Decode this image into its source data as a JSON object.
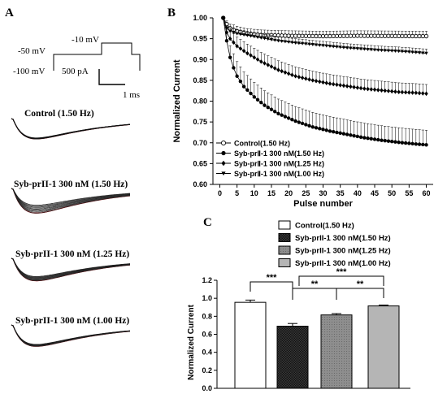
{
  "panels": {
    "a": {
      "letter": "A",
      "protocol": {
        "hold_label": "-100 mV",
        "pre_label": "-50 mV",
        "step_label": "-10 mV",
        "scale_current": "500 pA",
        "scale_time": "1 ms"
      },
      "traces": [
        {
          "label": "Control (1.50 Hz)",
          "spread": 0.05
        },
        {
          "label": "Syb-prII-1 300 nM (1.50 Hz)",
          "spread": 0.32
        },
        {
          "label": "Syb-prII-1 300 nM (1.25 Hz)",
          "spread": 0.19
        },
        {
          "label": "Syb-prII-1 300 nM (1.00 Hz)",
          "spread": 0.09
        }
      ]
    },
    "b": {
      "letter": "B"
    },
    "c": {
      "letter": "C"
    }
  },
  "colors": {
    "trace_body": "#111111",
    "trace_first": "#e0242b",
    "bar_edge": "#000000"
  },
  "chart_data": [
    {
      "type": "line",
      "panel": "B",
      "xlabel": "Pulse number",
      "ylabel": "Normalized Current",
      "xlim": [
        -2,
        62
      ],
      "ylim": [
        0.6,
        1.0
      ],
      "x_ticks": [
        "0",
        "5",
        "10",
        "15",
        "20",
        "25",
        "30",
        "35",
        "40",
        "45",
        "50",
        "55",
        "60"
      ],
      "y_ticks": [
        "0.60",
        "0.65",
        "0.70",
        "0.75",
        "0.80",
        "0.85",
        "0.90",
        "0.95",
        "1.00"
      ],
      "legend_position": "bottom-left",
      "error_bars": "upper",
      "grid": false,
      "series": [
        {
          "name": "Control(1.50 Hz)",
          "marker": "open-circle",
          "error": 0.012,
          "anchors": [
            [
              1,
              1.0
            ],
            [
              2,
              0.985
            ],
            [
              3,
              0.975
            ],
            [
              5,
              0.968
            ],
            [
              8,
              0.962
            ],
            [
              12,
              0.959
            ],
            [
              20,
              0.957
            ],
            [
              30,
              0.956
            ],
            [
              40,
              0.957
            ],
            [
              60,
              0.956
            ]
          ]
        },
        {
          "name": "Syb-prⅡ-1  300 nM(1.50 Hz)",
          "marker": "filled-circle",
          "error": 0.035,
          "anchors": [
            [
              1,
              1.0
            ],
            [
              2,
              0.945
            ],
            [
              3,
              0.905
            ],
            [
              4,
              0.88
            ],
            [
              5,
              0.86
            ],
            [
              7,
              0.835
            ],
            [
              10,
              0.81
            ],
            [
              13,
              0.79
            ],
            [
              17,
              0.77
            ],
            [
              22,
              0.752
            ],
            [
              27,
              0.738
            ],
            [
              32,
              0.728
            ],
            [
              37,
              0.72
            ],
            [
              42,
              0.712
            ],
            [
              47,
              0.706
            ],
            [
              52,
              0.701
            ],
            [
              57,
              0.697
            ],
            [
              60,
              0.695
            ]
          ]
        },
        {
          "name": "Syb-prⅡ-1  300 nM(1.25 Hz)",
          "marker": "filled-diamond",
          "error": 0.022,
          "anchors": [
            [
              1,
              1.0
            ],
            [
              2,
              0.965
            ],
            [
              3,
              0.95
            ],
            [
              5,
              0.932
            ],
            [
              8,
              0.915
            ],
            [
              12,
              0.895
            ],
            [
              17,
              0.875
            ],
            [
              22,
              0.86
            ],
            [
              27,
              0.85
            ],
            [
              32,
              0.842
            ],
            [
              37,
              0.836
            ],
            [
              42,
              0.83
            ],
            [
              47,
              0.826
            ],
            [
              52,
              0.822
            ],
            [
              57,
              0.82
            ],
            [
              60,
              0.818
            ]
          ]
        },
        {
          "name": "Syb-prⅡ-1  300 nM(1.00 Hz)",
          "marker": "filled-triangle-down",
          "error": 0.01,
          "anchors": [
            [
              1,
              1.0
            ],
            [
              2,
              0.975
            ],
            [
              3,
              0.968
            ],
            [
              5,
              0.962
            ],
            [
              8,
              0.958
            ],
            [
              12,
              0.952
            ],
            [
              17,
              0.945
            ],
            [
              22,
              0.94
            ],
            [
              27,
              0.936
            ],
            [
              32,
              0.932
            ],
            [
              37,
              0.928
            ],
            [
              42,
              0.925
            ],
            [
              47,
              0.922
            ],
            [
              52,
              0.92
            ],
            [
              57,
              0.917
            ],
            [
              60,
              0.915
            ]
          ]
        }
      ]
    },
    {
      "type": "bar",
      "panel": "C",
      "ylabel": "Normalized Current",
      "ylim": [
        0.0,
        1.2
      ],
      "y_ticks": [
        "0.0",
        "0.2",
        "0.4",
        "0.6",
        "0.8",
        "1.0",
        "1.2"
      ],
      "legend_position": "top",
      "grid": false,
      "categories": [
        "Control(1.50 Hz)",
        "Syb-prII-1 300 nM(1.50 Hz)",
        "Syb-prII-1 300 nM(1.25 Hz)",
        "Syb-prII-1 300 nM(1.00 Hz)"
      ],
      "values": [
        0.955,
        0.69,
        0.815,
        0.915
      ],
      "errors": [
        0.025,
        0.03,
        0.015,
        0.01
      ],
      "fills": [
        "white",
        "dark-checker",
        "mid-gray-dots",
        "light-gray"
      ],
      "significance": [
        {
          "from": 0,
          "to": 1,
          "label": "***"
        },
        {
          "from": 1,
          "to": 2,
          "label": "**"
        },
        {
          "from": 1,
          "to": 3,
          "label": "***"
        },
        {
          "from": 2,
          "to": 3,
          "label": "**"
        }
      ]
    }
  ]
}
